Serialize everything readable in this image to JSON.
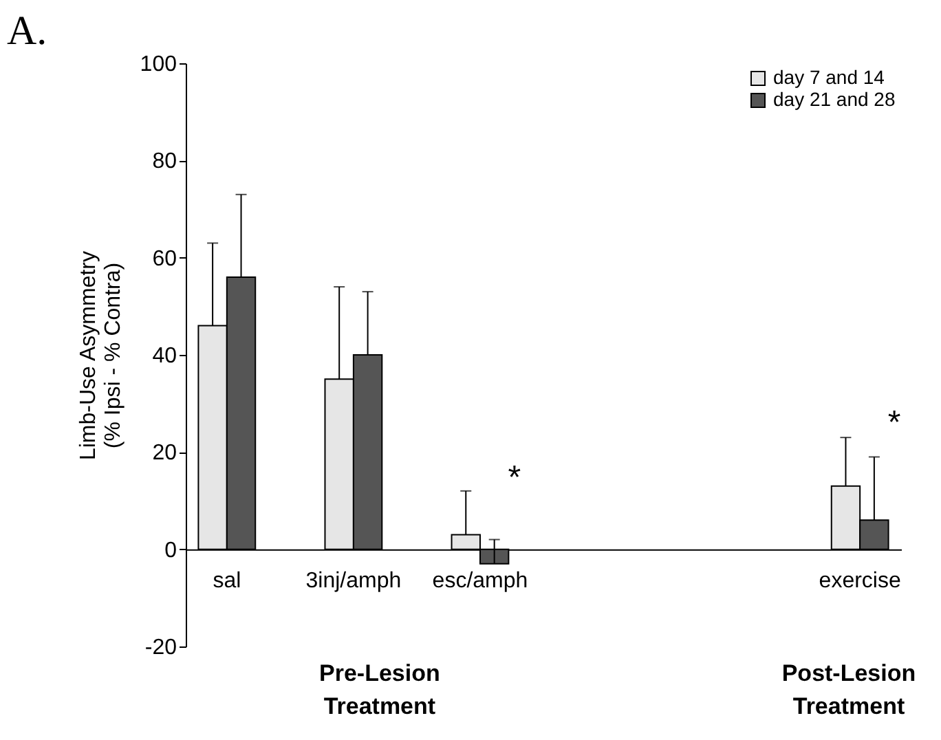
{
  "chart_data": {
    "type": "bar",
    "title": "A.",
    "ylabel": "Limb-Use Asymmetry\n(% Ipsi - % Contra)",
    "categories": [
      "sal",
      "3inj/amph",
      "esc/amph",
      null,
      null,
      "exercise"
    ],
    "series": [
      {
        "name": "day 7 and 14",
        "color": "#e6e6e6",
        "values": [
          46,
          35,
          3,
          null,
          null,
          13
        ],
        "errors": [
          [
            46,
            63
          ],
          [
            35,
            54
          ],
          [
            3,
            12
          ],
          null,
          null,
          [
            13,
            23
          ]
        ]
      },
      {
        "name": "day 21 and 28",
        "color": "#555555",
        "values": [
          56,
          40,
          -3,
          null,
          null,
          6
        ],
        "errors": [
          [
            56,
            73
          ],
          [
            40,
            53
          ],
          [
            -3,
            2
          ],
          null,
          null,
          [
            6,
            19
          ]
        ]
      }
    ],
    "ylim": [
      -20,
      100
    ],
    "yticks": [
      -20,
      0,
      20,
      40,
      60,
      80,
      100
    ],
    "grid": false,
    "legend": "top right",
    "annotations": [
      "*",
      "*",
      "Pre-Lesion\nTreatment",
      "Post-Lesion\nTreatment"
    ]
  }
}
